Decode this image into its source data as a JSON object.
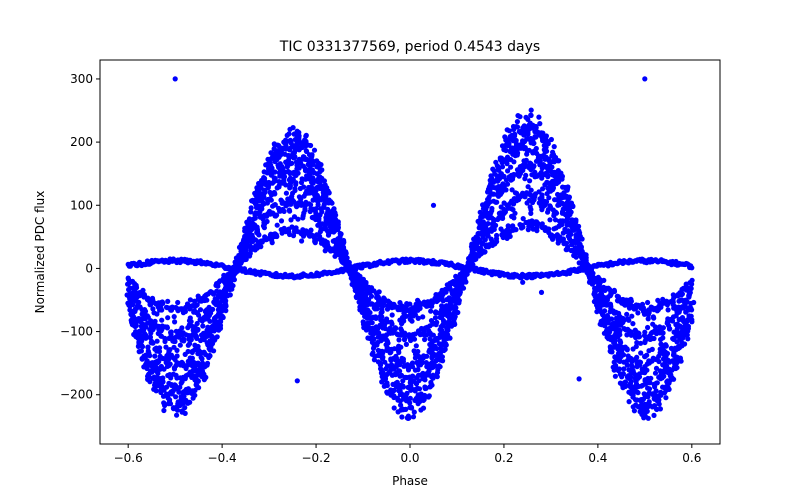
{
  "chart_data": {
    "type": "scatter",
    "title": "TIC 0331377569, period 0.4543 days",
    "xlabel": "Phase",
    "ylabel": "Normalized PDC flux",
    "xlim": [
      -0.66,
      0.66
    ],
    "ylim": [
      -278,
      330
    ],
    "xticks": [
      -0.6,
      -0.4,
      -0.2,
      0.0,
      0.2,
      0.4,
      0.6
    ],
    "xtick_labels": [
      "−0.6",
      "−0.4",
      "−0.2",
      "0.0",
      "0.2",
      "0.4",
      "0.6"
    ],
    "yticks": [
      -200,
      -100,
      0,
      100,
      200,
      300
    ],
    "ytick_labels": [
      "−200",
      "−100",
      "0",
      "100",
      "200",
      "300"
    ],
    "grid": false,
    "legend": "none",
    "marker_color": "#0000ff",
    "series": [
      {
        "description_of_shape": "phase-folded light curve, phase range -0.6 to 0.6",
        "main_band": {
          "model": "amplitude_fraction * (-A*cos(4*pi*phase) + B*sin(2*pi*phase)) + offset",
          "peak_flux_max": 230,
          "trough_flux_min": -250,
          "amplitude_fractions": [
            1.0,
            0.85,
            0.7,
            0.5,
            0.3
          ]
        },
        "flat_band": {
          "model": "A2*cos(4*pi*phase)",
          "amplitude": 12
        },
        "outliers": [
          {
            "x": -0.5,
            "y": 300
          },
          {
            "x": 0.5,
            "y": 300
          },
          {
            "x": 0.05,
            "y": 100
          },
          {
            "x": -0.24,
            "y": -178
          },
          {
            "x": 0.36,
            "y": -175
          },
          {
            "x": 0.28,
            "y": -38
          },
          {
            "x": 0.24,
            "y": -22
          }
        ]
      }
    ]
  }
}
